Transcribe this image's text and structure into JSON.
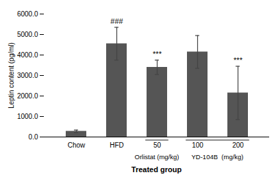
{
  "chart_data": {
    "type": "bar",
    "categories": [
      "Chow",
      "HFD",
      "50",
      "100",
      "200"
    ],
    "values": [
      280,
      4550,
      3400,
      4150,
      2150
    ],
    "errors": [
      60,
      800,
      350,
      800,
      1300
    ],
    "color": "#555555",
    "xlabel": "Treated group",
    "ylabel": "Leptin content (pg/ml)",
    "ylim": [
      0,
      6000
    ],
    "yticks": [
      {
        "value": 0,
        "label": "0.0"
      },
      {
        "value": 1000,
        "label": "1000.0"
      },
      {
        "value": 2000,
        "label": "2000.0"
      },
      {
        "value": 3000,
        "label": "3000.0"
      },
      {
        "value": 4000,
        "label": "4000.0"
      },
      {
        "value": 5000,
        "label": "5000.0"
      },
      {
        "value": 6000,
        "label": "6000.0"
      }
    ],
    "grid": false,
    "annotations": [
      {
        "text": "###",
        "category": "HFD"
      },
      {
        "text": "***",
        "category": "50"
      },
      {
        "text": "***",
        "category": "200"
      }
    ],
    "category_groups": [
      {
        "label": "Orlistat (mg/kg)",
        "categories": [
          "50"
        ]
      },
      {
        "label": "YD-104B  (mg/kg)",
        "categories": [
          "100",
          "200"
        ]
      }
    ]
  }
}
